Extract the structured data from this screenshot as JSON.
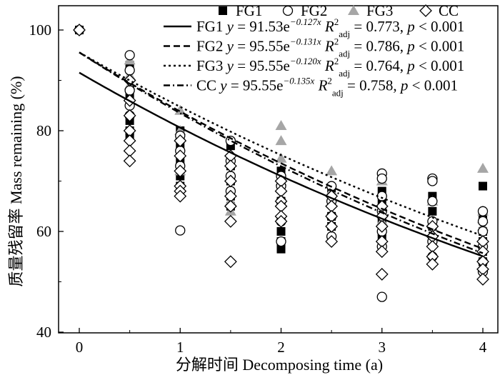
{
  "chart_data": {
    "type": "scatter",
    "xlabel": "分解时间 Decomposing time (a)",
    "ylabel": "质量残留率 Mass remaining (%)",
    "xlim": [
      -0.2,
      4.1
    ],
    "ylim": [
      40,
      102
    ],
    "xticks": [
      0,
      1,
      2,
      3,
      4
    ],
    "yticks": [
      40,
      60,
      80,
      100
    ],
    "grid": false,
    "legend_position": "top-right",
    "series": [
      {
        "name": "FG1",
        "marker": "filled-square",
        "color": "#000000",
        "points": [
          [
            0,
            100
          ],
          [
            0.5,
            93
          ],
          [
            0.5,
            87
          ],
          [
            0.5,
            82
          ],
          [
            0.5,
            80
          ],
          [
            0.5,
            79
          ],
          [
            1,
            80
          ],
          [
            1,
            77
          ],
          [
            1,
            74
          ],
          [
            1,
            71
          ],
          [
            1,
            69
          ],
          [
            1.5,
            77
          ],
          [
            1.5,
            73
          ],
          [
            1.5,
            70
          ],
          [
            1.5,
            67
          ],
          [
            1.5,
            65
          ],
          [
            2,
            72
          ],
          [
            2,
            69
          ],
          [
            2,
            66
          ],
          [
            2,
            60
          ],
          [
            2,
            58
          ],
          [
            2,
            56.5
          ],
          [
            2.5,
            68
          ],
          [
            2.5,
            66
          ],
          [
            2.5,
            63
          ],
          [
            2.5,
            61
          ],
          [
            3,
            68
          ],
          [
            3,
            66
          ],
          [
            3,
            64
          ],
          [
            3,
            62
          ],
          [
            3,
            60
          ],
          [
            3,
            58.5
          ],
          [
            3.5,
            67
          ],
          [
            3.5,
            64
          ],
          [
            3.5,
            61
          ],
          [
            3.5,
            58
          ],
          [
            4,
            69
          ],
          [
            4,
            63
          ],
          [
            4,
            60
          ],
          [
            4,
            58
          ],
          [
            4,
            56
          ],
          [
            4,
            54
          ]
        ]
      },
      {
        "name": "FG2",
        "marker": "open-circle",
        "color": "#000000",
        "points": [
          [
            0,
            100
          ],
          [
            0.5,
            95
          ],
          [
            0.5,
            92
          ],
          [
            0.5,
            88
          ],
          [
            0.5,
            85
          ],
          [
            0.5,
            83
          ],
          [
            1,
            79
          ],
          [
            1,
            76
          ],
          [
            1,
            73
          ],
          [
            1,
            60.2
          ],
          [
            1.5,
            78
          ],
          [
            1.5,
            74
          ],
          [
            1.5,
            71
          ],
          [
            1.5,
            68
          ],
          [
            2,
            71
          ],
          [
            2,
            69
          ],
          [
            2,
            66
          ],
          [
            2,
            62
          ],
          [
            2,
            58
          ],
          [
            2.5,
            69
          ],
          [
            2.5,
            66
          ],
          [
            2.5,
            63
          ],
          [
            2.5,
            59
          ],
          [
            3,
            71.5
          ],
          [
            3,
            70.5
          ],
          [
            3,
            67
          ],
          [
            3,
            64
          ],
          [
            3,
            60
          ],
          [
            3,
            57
          ],
          [
            3,
            47
          ],
          [
            3.5,
            70.5
          ],
          [
            3.5,
            70
          ],
          [
            3.5,
            66
          ],
          [
            3.5,
            62
          ],
          [
            3.5,
            58
          ],
          [
            3.5,
            55
          ],
          [
            4,
            64
          ],
          [
            4,
            62
          ],
          [
            4,
            60
          ],
          [
            4,
            57
          ],
          [
            4,
            54
          ],
          [
            4,
            52
          ]
        ]
      },
      {
        "name": "FG3",
        "marker": "filled-triangle",
        "color": "#a6a6a6",
        "points": [
          [
            0.5,
            94
          ],
          [
            0.5,
            91
          ],
          [
            0.5,
            89
          ],
          [
            1,
            84
          ],
          [
            1,
            80
          ],
          [
            1,
            79
          ],
          [
            1,
            72
          ],
          [
            1.5,
            66
          ],
          [
            1.5,
            64
          ],
          [
            2,
            81
          ],
          [
            2,
            78
          ],
          [
            2,
            74.5
          ],
          [
            2,
            70
          ],
          [
            2.5,
            72
          ],
          [
            2.5,
            68
          ],
          [
            3,
            70
          ],
          [
            3,
            65
          ],
          [
            3,
            62
          ],
          [
            3.5,
            66
          ],
          [
            3.5,
            62
          ],
          [
            4,
            72.5
          ],
          [
            4,
            64
          ],
          [
            4,
            62.5
          ],
          [
            4,
            61
          ]
        ]
      },
      {
        "name": "CC",
        "marker": "open-diamond",
        "color": "#000000",
        "points": [
          [
            0,
            100
          ],
          [
            0.5,
            90
          ],
          [
            0.5,
            86
          ],
          [
            0.5,
            83
          ],
          [
            0.5,
            80
          ],
          [
            0.5,
            78
          ],
          [
            0.5,
            76
          ],
          [
            0.5,
            74
          ],
          [
            1,
            78
          ],
          [
            1,
            75
          ],
          [
            1,
            72
          ],
          [
            1,
            69
          ],
          [
            1,
            68
          ],
          [
            1,
            67
          ],
          [
            1.5,
            75
          ],
          [
            1.5,
            73
          ],
          [
            1.5,
            70
          ],
          [
            1.5,
            67
          ],
          [
            1.5,
            65
          ],
          [
            1.5,
            62
          ],
          [
            1.5,
            54
          ],
          [
            2,
            70
          ],
          [
            2,
            68
          ],
          [
            2,
            66
          ],
          [
            2,
            65
          ],
          [
            2,
            63
          ],
          [
            2,
            62
          ],
          [
            2.5,
            67
          ],
          [
            2.5,
            65
          ],
          [
            2.5,
            63
          ],
          [
            2.5,
            61
          ],
          [
            2.5,
            58
          ],
          [
            3,
            65
          ],
          [
            3,
            63
          ],
          [
            3,
            61
          ],
          [
            3,
            58
          ],
          [
            3,
            56
          ],
          [
            3,
            51.5
          ],
          [
            3.5,
            61
          ],
          [
            3.5,
            59
          ],
          [
            3.5,
            57
          ],
          [
            3.5,
            55
          ],
          [
            3.5,
            53.5
          ],
          [
            4,
            58
          ],
          [
            4,
            56
          ],
          [
            4,
            54
          ],
          [
            4,
            52.5
          ],
          [
            4,
            50.5
          ]
        ]
      }
    ],
    "fits": [
      {
        "series": "FG1",
        "a": 91.53,
        "b": -0.127,
        "dash": "solid",
        "eq_text": "91.53e",
        "exp_text": "−0.127x",
        "r2_text": "0.773",
        "p_text": "< 0.001"
      },
      {
        "series": "FG2",
        "a": 95.55,
        "b": -0.131,
        "dash": "dashed",
        "eq_text": "95.55e",
        "exp_text": "−0.131x",
        "r2_text": "0.786",
        "p_text": "< 0.001"
      },
      {
        "series": "FG3",
        "a": 95.55,
        "b": -0.12,
        "dash": "dotted",
        "eq_text": "95.55e",
        "exp_text": "−0.120x",
        "r2_text": "0.764",
        "p_text": "< 0.001"
      },
      {
        "series": "CC",
        "a": 95.55,
        "b": -0.135,
        "dash": "dashdot",
        "eq_text": "95.55e",
        "exp_text": "−0.135x",
        "r2_text": "0.758",
        "p_text": "< 0.001"
      }
    ]
  }
}
